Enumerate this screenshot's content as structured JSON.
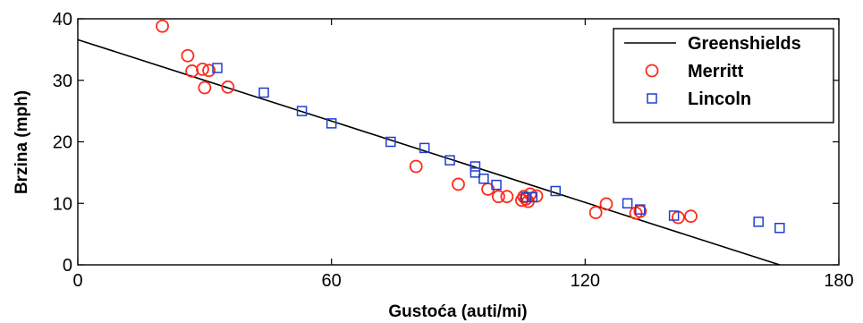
{
  "chart_data": {
    "type": "scatter",
    "xlabel": "Gustoća (auti/mi)",
    "ylabel": "Brzina (mph)",
    "xlim": [
      0,
      180
    ],
    "ylim": [
      0,
      40
    ],
    "xticks": [
      "0",
      "60",
      "120",
      "180"
    ],
    "yticks": [
      "0",
      "10",
      "20",
      "30",
      "40"
    ],
    "grid": false,
    "legend_position": "top-right",
    "series": [
      {
        "name": "Greenshields",
        "kind": "line",
        "color": "#000000",
        "x": [
          0,
          166
        ],
        "y": [
          36.6,
          0
        ]
      },
      {
        "name": "Merritt",
        "kind": "circle",
        "color": "#ff2a1a",
        "x": [
          20,
          26,
          27,
          29.5,
          31,
          30,
          35.5,
          80,
          90,
          97,
          99.5,
          101.5,
          105,
          105.5,
          106,
          106.5,
          107,
          108.5,
          122.5,
          125,
          132,
          133,
          142,
          145
        ],
        "y": [
          38.8,
          34,
          31.5,
          31.8,
          31.6,
          28.8,
          28.9,
          16,
          13.1,
          12.3,
          11.1,
          11.1,
          10.5,
          11.1,
          10.7,
          10.3,
          11.5,
          11.2,
          8.5,
          9.9,
          8.4,
          8.7,
          7.7,
          7.9
        ]
      },
      {
        "name": "Lincoln",
        "kind": "square",
        "color": "#1f3fd0",
        "x": [
          33,
          44,
          53,
          60,
          74,
          82,
          88,
          94,
          94,
          96,
          99,
          106,
          107.5,
          113,
          130,
          133,
          141,
          161,
          166
        ],
        "y": [
          32,
          28,
          25,
          23,
          20,
          19,
          17,
          16,
          15,
          14,
          13,
          11,
          11,
          12,
          10,
          9,
          8,
          7,
          6
        ]
      }
    ]
  }
}
